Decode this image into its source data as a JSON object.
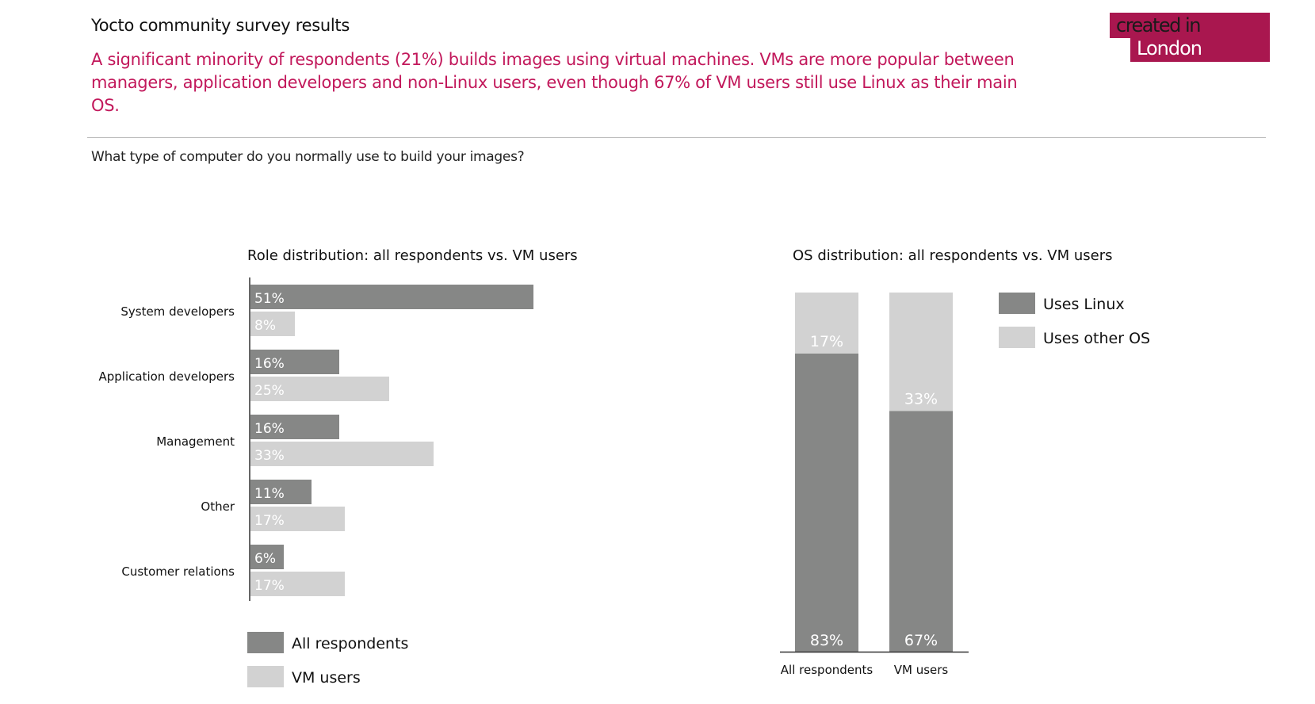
{
  "header": {
    "title": "Yocto community survey results",
    "subtitle": "A significant minority of respondents (21%) builds images using virtual machines. VMs are more popular between managers, application developers and non-Linux users, even though 67% of VM users still use Linux as their main OS.",
    "badge_line1": "created in",
    "badge_line2": "London",
    "question": "What type of computer do you normally use to build your images?"
  },
  "colors": {
    "dark_bar": "#868786",
    "light_bar": "#d2d2d2",
    "accent": "#c2185b",
    "badge": "#a9174f"
  },
  "chart_data": [
    {
      "type": "bar",
      "orientation": "horizontal",
      "title": "Role distribution: all respondents vs. VM users",
      "categories": [
        "System developers",
        "Application developers",
        "Management",
        "Other",
        "Customer relations"
      ],
      "series": [
        {
          "name": "All respondents",
          "values": [
            51,
            16,
            16,
            11,
            6
          ],
          "labels": [
            "51%",
            "16%",
            "16%",
            "11%",
            "6%"
          ]
        },
        {
          "name": "VM users",
          "values": [
            8,
            25,
            33,
            17,
            17
          ],
          "labels": [
            "8%",
            "25%",
            "33%",
            "17%",
            "17%"
          ]
        }
      ],
      "unit": "%",
      "legend_position": "bottom-left"
    },
    {
      "type": "bar",
      "orientation": "vertical",
      "stacked": true,
      "title": "OS distribution: all respondents vs. VM users",
      "categories": [
        "All respondents",
        "VM users"
      ],
      "series": [
        {
          "name": "Uses Linux",
          "values": [
            83,
            67
          ],
          "labels": [
            "83%",
            "67%"
          ]
        },
        {
          "name": "Uses other OS",
          "values": [
            17,
            33
          ],
          "labels": [
            "17%",
            "33%"
          ]
        }
      ],
      "unit": "%",
      "ylim": [
        0,
        100
      ],
      "legend_position": "right"
    }
  ]
}
